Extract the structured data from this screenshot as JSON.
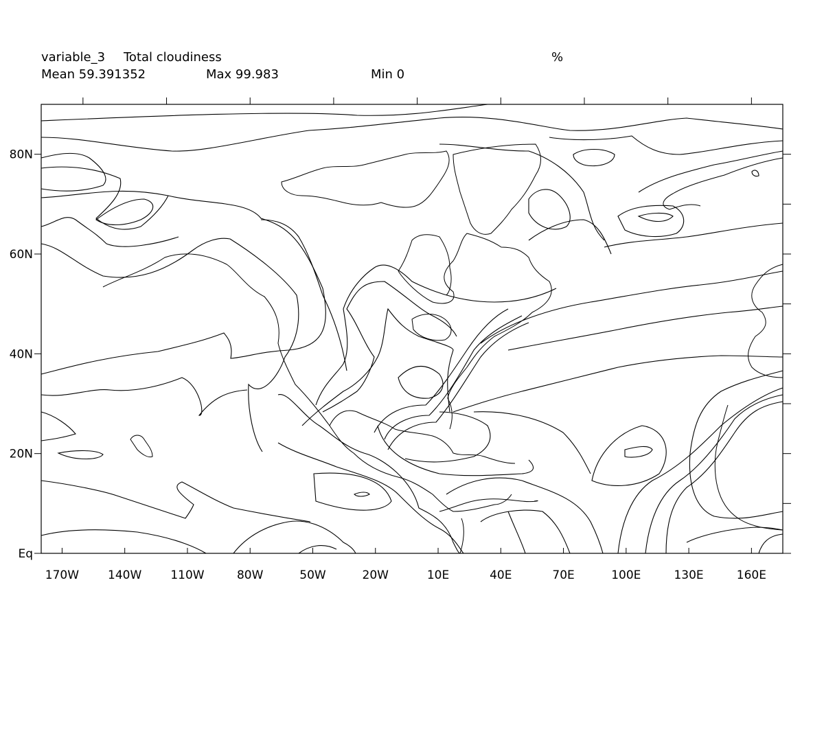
{
  "header": {
    "variable": "variable_3",
    "long_name": "Total cloudiness",
    "units": "%",
    "mean_text": "Mean 59.391352",
    "max_text": "Max 99.983",
    "min_text": "Min 0"
  },
  "axes": {
    "x_tick_labels": [
      "170W",
      "140W",
      "110W",
      "80W",
      "50W",
      "20W",
      "10E",
      "40E",
      "70E",
      "100E",
      "130E",
      "160E"
    ],
    "x_tick_lons": [
      -170,
      -140,
      -110,
      -80,
      -50,
      -20,
      10,
      40,
      70,
      100,
      130,
      160
    ],
    "y_tick_labels": [
      "80N",
      "60N",
      "40N",
      "20N",
      "Eq"
    ],
    "y_tick_lats": [
      80,
      60,
      40,
      20,
      0
    ],
    "lon_range": [
      -180,
      175
    ],
    "lat_range": [
      0,
      90
    ]
  }
}
